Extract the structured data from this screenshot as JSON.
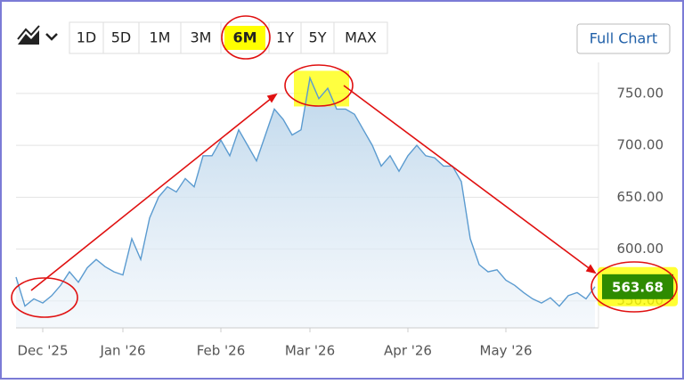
{
  "chart_data": {
    "type": "area",
    "range_buttons": [
      "1D",
      "5D",
      "1M",
      "3M",
      "6M",
      "1Y",
      "5Y",
      "MAX"
    ],
    "selected_range": "6M",
    "full_chart_button": "Full Chart",
    "categories": [
      null,
      null,
      null,
      "Dec '25",
      null,
      null,
      null,
      null,
      null,
      null,
      null,
      null,
      "Jan '26",
      null,
      null,
      null,
      null,
      null,
      null,
      null,
      null,
      null,
      null,
      "Feb '26",
      null,
      null,
      null,
      null,
      null,
      null,
      null,
      null,
      null,
      "Mar '26",
      null,
      null,
      null,
      null,
      null,
      null,
      null,
      null,
      null,
      null,
      "Apr '26",
      null,
      null,
      null,
      null,
      null,
      null,
      null,
      null,
      null,
      null,
      "May '26",
      null,
      null,
      null,
      null,
      null,
      null,
      null,
      null,
      null,
      null
    ],
    "values": [
      573,
      545,
      552,
      548,
      555,
      565,
      578,
      568,
      582,
      590,
      583,
      578,
      575,
      610,
      590,
      630,
      650,
      660,
      655,
      668,
      660,
      690,
      690,
      705,
      690,
      715,
      700,
      685,
      710,
      735,
      725,
      710,
      715,
      765,
      745,
      755,
      735,
      735,
      730,
      715,
      700,
      680,
      690,
      675,
      690,
      700,
      690,
      688,
      680,
      680,
      665,
      610,
      585,
      578,
      580,
      570,
      565,
      558,
      552,
      548,
      553,
      545,
      555,
      558,
      552,
      563.68
    ],
    "color": "#5b9bd0",
    "ylim": [
      524,
      780
    ],
    "yticks": [
      {
        "value": 550,
        "label": "550.00"
      },
      {
        "value": 600,
        "label": "600.00"
      },
      {
        "value": 650,
        "label": "650.00"
      },
      {
        "value": 700,
        "label": "700.00"
      },
      {
        "value": 750,
        "label": "750.00"
      }
    ],
    "grid": true
  }
}
